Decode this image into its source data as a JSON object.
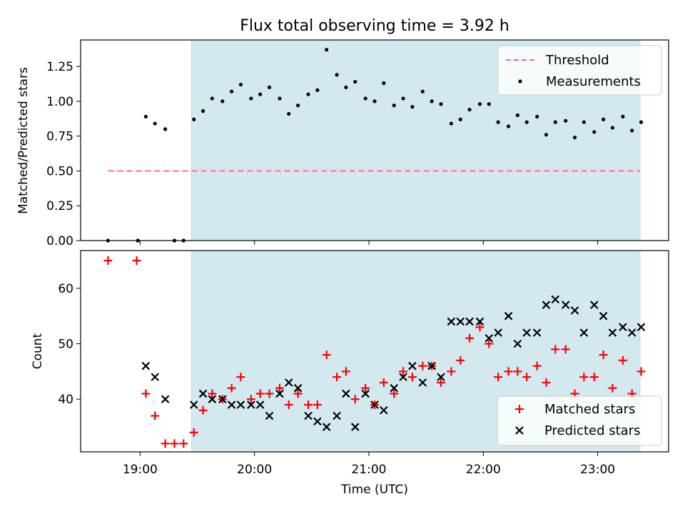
{
  "chart_data": [
    {
      "type": "scatter",
      "title": "Flux total observing time = 3.92 h",
      "xlabel": "",
      "ylabel": "Matched/Predicted stars",
      "xlim": [
        18.48,
        23.62
      ],
      "ylim": [
        0.0,
        1.44
      ],
      "yticks": [
        0.0,
        0.25,
        0.5,
        0.75,
        1.0,
        1.25
      ],
      "ytick_labels": [
        "0.00",
        "0.25",
        "0.50",
        "0.75",
        "1.00",
        "1.25"
      ],
      "xticks": [
        19,
        20,
        21,
        22,
        23
      ],
      "shaded_span": [
        19.45,
        23.37
      ],
      "threshold": {
        "value": 0.5,
        "x_start": 18.72,
        "x_end": 23.37
      },
      "legend": [
        "Threshold",
        "Measurements"
      ],
      "legend_position": "upper right",
      "series": [
        {
          "name": "Measurements",
          "x": [
            18.72,
            18.98,
            19.05,
            19.13,
            19.22,
            19.3,
            19.38,
            19.47,
            19.55,
            19.63,
            19.72,
            19.8,
            19.88,
            19.97,
            20.05,
            20.13,
            20.22,
            20.3,
            20.38,
            20.47,
            20.55,
            20.63,
            20.72,
            20.8,
            20.88,
            20.97,
            21.05,
            21.13,
            21.22,
            21.3,
            21.38,
            21.47,
            21.55,
            21.63,
            21.72,
            21.8,
            21.88,
            21.97,
            22.05,
            22.13,
            22.22,
            22.3,
            22.38,
            22.47,
            22.55,
            22.63,
            22.72,
            22.8,
            22.88,
            22.97,
            23.05,
            23.13,
            23.22,
            23.3,
            23.38
          ],
          "y": [
            0.0,
            0.0,
            0.89,
            0.84,
            0.8,
            0.0,
            0.0,
            0.87,
            0.93,
            1.02,
            1.0,
            1.07,
            1.12,
            1.02,
            1.05,
            1.1,
            1.02,
            0.91,
            0.97,
            1.05,
            1.08,
            1.37,
            1.19,
            1.1,
            1.14,
            1.02,
            1.0,
            1.13,
            0.97,
            1.02,
            0.96,
            1.07,
            1.0,
            0.98,
            0.84,
            0.87,
            0.94,
            0.98,
            0.98,
            0.85,
            0.82,
            0.9,
            0.85,
            0.89,
            0.76,
            0.85,
            0.86,
            0.74,
            0.85,
            0.78,
            0.87,
            0.81,
            0.89,
            0.79,
            0.85
          ]
        }
      ]
    },
    {
      "type": "scatter",
      "title": "",
      "xlabel": "Time (UTC)",
      "ylabel": "Count",
      "xlim": [
        18.48,
        23.62
      ],
      "ylim": [
        30.5,
        66.8
      ],
      "yticks": [
        40,
        50,
        60
      ],
      "ytick_labels": [
        "40",
        "50",
        "60"
      ],
      "xticks": [
        19,
        20,
        21,
        22,
        23
      ],
      "xtick_labels": [
        "19:00",
        "20:00",
        "21:00",
        "22:00",
        "23:00"
      ],
      "shaded_span": [
        19.45,
        23.37
      ],
      "legend": [
        "Matched stars",
        "Predicted stars"
      ],
      "legend_position": "lower right",
      "series": [
        {
          "name": "Matched stars",
          "marker": "+",
          "x": [
            18.72,
            18.97,
            19.05,
            19.13,
            19.22,
            19.3,
            19.38,
            19.47,
            19.55,
            19.63,
            19.72,
            19.8,
            19.88,
            19.97,
            20.05,
            20.13,
            20.22,
            20.3,
            20.38,
            20.47,
            20.55,
            20.63,
            20.72,
            20.8,
            20.88,
            20.97,
            21.05,
            21.13,
            21.22,
            21.3,
            21.38,
            21.47,
            21.55,
            21.63,
            21.72,
            21.8,
            21.88,
            21.97,
            22.05,
            22.13,
            22.22,
            22.3,
            22.38,
            22.47,
            22.55,
            22.63,
            22.72,
            22.8,
            22.88,
            22.97,
            23.05,
            23.13,
            23.22,
            23.3,
            23.38
          ],
          "y": [
            65,
            65,
            41,
            37,
            32,
            32,
            32,
            34,
            38,
            41,
            40,
            42,
            44,
            40,
            41,
            41,
            42,
            39,
            41,
            39,
            39,
            48,
            44,
            45,
            40,
            42,
            39,
            43,
            41,
            45,
            44,
            46,
            46,
            43,
            45,
            47,
            51,
            53,
            50,
            44,
            45,
            45,
            44,
            46,
            43,
            49,
            49,
            41,
            44,
            44,
            48,
            42,
            47,
            41,
            45
          ]
        },
        {
          "name": "Predicted stars",
          "marker": "x",
          "x": [
            19.05,
            19.13,
            19.22,
            19.47,
            19.55,
            19.63,
            19.72,
            19.8,
            19.88,
            19.97,
            20.05,
            20.13,
            20.22,
            20.3,
            20.38,
            20.47,
            20.55,
            20.63,
            20.72,
            20.8,
            20.88,
            20.97,
            21.05,
            21.13,
            21.22,
            21.3,
            21.38,
            21.47,
            21.55,
            21.63,
            21.72,
            21.8,
            21.88,
            21.97,
            22.05,
            22.13,
            22.22,
            22.3,
            22.38,
            22.47,
            22.55,
            22.63,
            22.72,
            22.8,
            22.88,
            22.97,
            23.05,
            23.13,
            23.22,
            23.3,
            23.38
          ],
          "y": [
            46,
            44,
            40,
            39,
            41,
            40,
            40,
            39,
            39,
            39,
            39,
            37,
            41,
            43,
            42,
            37,
            36,
            35,
            37,
            41,
            35,
            41,
            39,
            38,
            42,
            44,
            46,
            43,
            46,
            44,
            54,
            54,
            54,
            54,
            51,
            52,
            55,
            50,
            52,
            52,
            57,
            58,
            57,
            56,
            52,
            57,
            55,
            52,
            53,
            52,
            53
          ]
        }
      ]
    }
  ],
  "colors": {
    "shade": "#d3e9ef",
    "shade_edge": "#b7dbe3",
    "threshold": "#ff7070",
    "matched": "#ff0000",
    "predicted": "#000000",
    "measurement": "#000000"
  }
}
